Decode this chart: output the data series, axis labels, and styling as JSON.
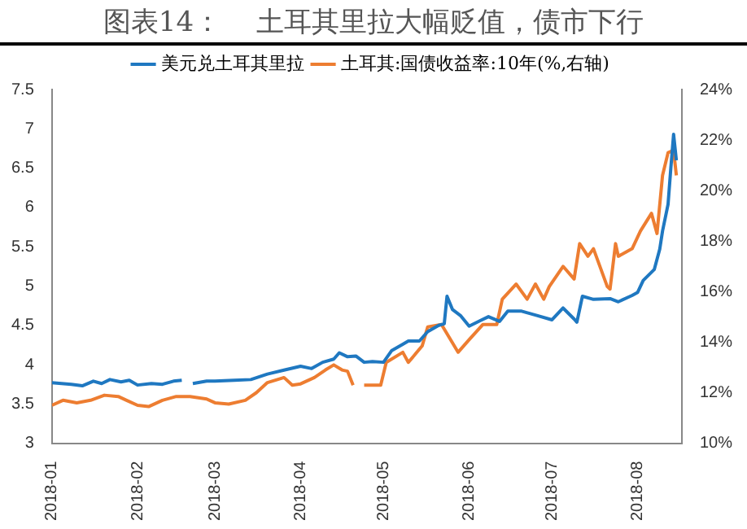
{
  "chart_data": {
    "type": "line",
    "title": "图表14：    土耳其里拉大幅贬值，债市下行",
    "legend": "top",
    "grid": false,
    "marker": "none",
    "line_style": "solid",
    "xlim": [
      "2018-01-01",
      "2018-08-17"
    ],
    "xticks": [
      {
        "value": "2018-01-01",
        "label": "2018-01"
      },
      {
        "value": "2018-02-01",
        "label": "2018-02"
      },
      {
        "value": "2018-03-01",
        "label": "2018-03"
      },
      {
        "value": "2018-04-01",
        "label": "2018-04"
      },
      {
        "value": "2018-05-01",
        "label": "2018-05"
      },
      {
        "value": "2018-06-01",
        "label": "2018-06"
      },
      {
        "value": "2018-07-01",
        "label": "2018-07"
      },
      {
        "value": "2018-08-01",
        "label": "2018-08"
      }
    ],
    "ylim": [
      3,
      7.5
    ],
    "yticks": [
      3,
      3.5,
      4,
      4.5,
      5,
      5.5,
      6,
      6.5,
      7,
      7.5
    ],
    "y2lim": [
      10,
      24
    ],
    "y2ticks": [
      {
        "value": 10,
        "label": "10%"
      },
      {
        "value": 12,
        "label": "12%"
      },
      {
        "value": 14,
        "label": "14%"
      },
      {
        "value": 16,
        "label": "16%"
      },
      {
        "value": 18,
        "label": "18%"
      },
      {
        "value": 20,
        "label": "20%"
      },
      {
        "value": 22,
        "label": "22%"
      },
      {
        "value": 24,
        "label": "24%"
      }
    ],
    "series": [
      {
        "name": "美元兑土耳其里拉",
        "color": "#1f78c1",
        "x": [
          "2018-01-01",
          "2018-01-08",
          "2018-01-12",
          "2018-01-16",
          "2018-01-19",
          "2018-01-22",
          "2018-01-26",
          "2018-01-29",
          "2018-02-01",
          "2018-02-06",
          "2018-02-10",
          "2018-02-14",
          "2018-02-17",
          "2018-02-19",
          "2018-02-21",
          "2018-02-26",
          "2018-03-01",
          "2018-03-08",
          "2018-03-14",
          "2018-03-20",
          "2018-03-26",
          "2018-04-01",
          "2018-04-05",
          "2018-04-09",
          "2018-04-13",
          "2018-04-15",
          "2018-04-18",
          "2018-04-21",
          "2018-04-24",
          "2018-04-27",
          "2018-05-01",
          "2018-05-04",
          "2018-05-08",
          "2018-05-10",
          "2018-05-14",
          "2018-05-17",
          "2018-05-21",
          "2018-05-23",
          "2018-05-24",
          "2018-05-26",
          "2018-05-29",
          "2018-06-01",
          "2018-06-05",
          "2018-06-08",
          "2018-06-12",
          "2018-06-15",
          "2018-06-20",
          "2018-06-25",
          "2018-07-01",
          "2018-07-05",
          "2018-07-09",
          "2018-07-10",
          "2018-07-12",
          "2018-07-16",
          "2018-07-22",
          "2018-07-25",
          "2018-07-30",
          "2018-08-01",
          "2018-08-03",
          "2018-08-07",
          "2018-08-09",
          "2018-08-10",
          "2018-08-12",
          "2018-08-13",
          "2018-08-14",
          "2018-08-15"
        ],
        "values": [
          3.77,
          3.75,
          3.73,
          3.79,
          3.76,
          3.81,
          3.78,
          3.8,
          3.74,
          3.76,
          3.75,
          3.79,
          3.8,
          null,
          3.76,
          3.79,
          3.79,
          3.8,
          3.81,
          3.88,
          3.93,
          3.98,
          3.95,
          4.03,
          4.07,
          4.15,
          4.1,
          4.11,
          4.03,
          4.04,
          4.03,
          4.18,
          4.26,
          4.3,
          4.3,
          4.42,
          4.5,
          4.52,
          4.87,
          4.7,
          4.62,
          4.49,
          4.56,
          4.61,
          4.55,
          4.68,
          4.68,
          4.63,
          4.57,
          4.72,
          4.58,
          4.54,
          4.87,
          4.83,
          4.84,
          4.8,
          4.88,
          4.92,
          5.07,
          5.21,
          5.47,
          5.7,
          6.04,
          6.5,
          6.93,
          6.6
        ]
      },
      {
        "name": "土耳其:国债收益率:10年(%,右轴)",
        "color": "#ed7d31",
        "axis": "y2",
        "x": [
          "2018-01-01",
          "2018-01-05",
          "2018-01-10",
          "2018-01-15",
          "2018-01-20",
          "2018-01-25",
          "2018-01-28",
          "2018-02-01",
          "2018-02-05",
          "2018-02-10",
          "2018-02-15",
          "2018-02-20",
          "2018-02-26",
          "2018-03-01",
          "2018-03-06",
          "2018-03-12",
          "2018-03-16",
          "2018-03-20",
          "2018-03-26",
          "2018-03-29",
          "2018-04-01",
          "2018-04-06",
          "2018-04-10",
          "2018-04-13",
          "2018-04-16",
          "2018-04-18",
          "2018-04-20",
          "2018-04-22",
          "2018-04-24",
          "2018-04-30",
          "2018-05-02",
          "2018-05-08",
          "2018-05-10",
          "2018-05-15",
          "2018-05-17",
          "2018-05-22",
          "2018-05-28",
          "2018-06-01",
          "2018-06-06",
          "2018-06-11",
          "2018-06-13",
          "2018-06-18",
          "2018-06-22",
          "2018-06-25",
          "2018-06-28",
          "2018-06-30",
          "2018-07-05",
          "2018-07-09",
          "2018-07-11",
          "2018-07-14",
          "2018-07-16",
          "2018-07-21",
          "2018-07-22",
          "2018-07-24",
          "2018-07-25",
          "2018-07-30",
          "2018-08-02",
          "2018-08-06",
          "2018-08-08",
          "2018-08-10",
          "2018-08-12",
          "2018-08-14",
          "2018-08-15"
        ],
        "values": [
          11.5,
          11.7,
          11.6,
          11.7,
          11.9,
          11.85,
          11.7,
          11.5,
          11.45,
          11.7,
          11.85,
          11.85,
          11.75,
          11.6,
          11.55,
          11.7,
          12.0,
          12.4,
          12.6,
          12.3,
          12.35,
          12.6,
          12.9,
          13.1,
          12.9,
          12.85,
          12.3,
          null,
          12.3,
          12.3,
          13.2,
          13.6,
          13.2,
          13.85,
          14.6,
          14.7,
          13.6,
          14.1,
          14.7,
          14.7,
          15.7,
          16.3,
          15.7,
          16.3,
          15.7,
          16.2,
          17.0,
          16.5,
          17.9,
          17.4,
          17.7,
          16.2,
          16.1,
          17.9,
          17.4,
          17.7,
          18.4,
          19.1,
          18.3,
          20.6,
          21.5,
          21.6,
          20.6
        ]
      }
    ]
  }
}
